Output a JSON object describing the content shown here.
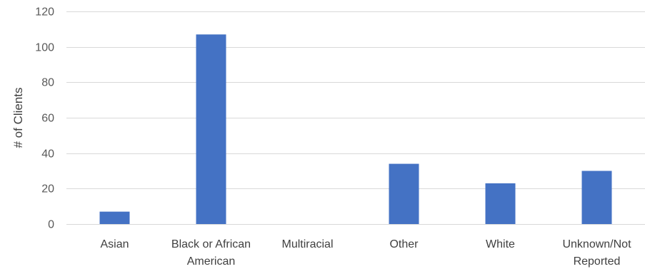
{
  "chart_data": {
    "type": "bar",
    "title": "",
    "xlabel": "",
    "ylabel": "# of Clients",
    "ylim": [
      0,
      120
    ],
    "yticks": [
      0,
      20,
      40,
      60,
      80,
      100,
      120
    ],
    "grid": true,
    "legend": "none",
    "categories": [
      [
        "Asian"
      ],
      [
        "Black or African",
        "American"
      ],
      [
        "Multiracial"
      ],
      [
        "Other"
      ],
      [
        "White"
      ],
      [
        "Unknown/Not",
        "Reported"
      ]
    ],
    "values": [
      7,
      107,
      0,
      34,
      23,
      30
    ],
    "bar_color": "#4472c4",
    "grid_color": "#d9d9d9"
  }
}
